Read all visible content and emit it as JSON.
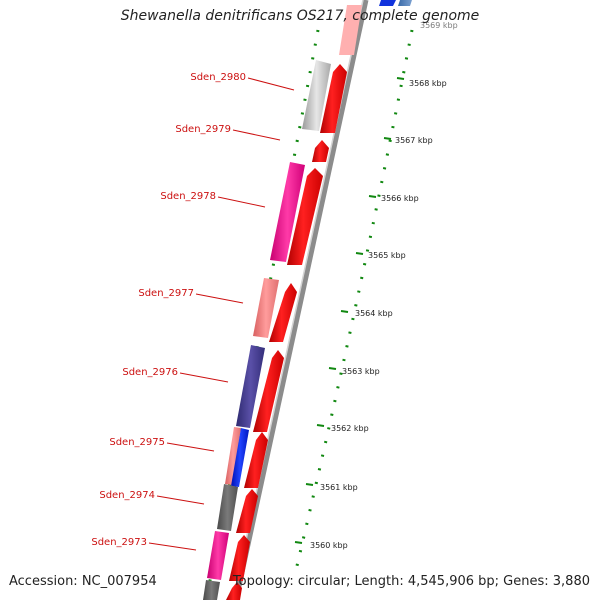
{
  "title": "Shewanella denitrificans OS217, complete genome",
  "accession": "Accession: NC_007954",
  "topology": "Topology: circular; Length: 4,545,906 bp; Genes: 3,880",
  "colors": {
    "backbone": "#8c8c8c",
    "forward_cds": "#ff0000",
    "gene_label": "#cc1111",
    "gc_ticks": "#118811",
    "top_blue": "#1133dd"
  },
  "gene_labels": [
    "Sden_2980",
    "Sden_2979",
    "Sden_2978",
    "Sden_2977",
    "Sden_2976",
    "Sden_2975",
    "Sden_2974",
    "Sden_2973"
  ],
  "scale_labels": [
    "3568 kbp",
    "3567 kbp",
    "3566 kbp",
    "3565 kbp",
    "3564 kbp",
    "3563 kbp",
    "3562 kbp",
    "3561 kbp",
    "3560 kbp"
  ],
  "partial_top_label": "3569 kbp"
}
